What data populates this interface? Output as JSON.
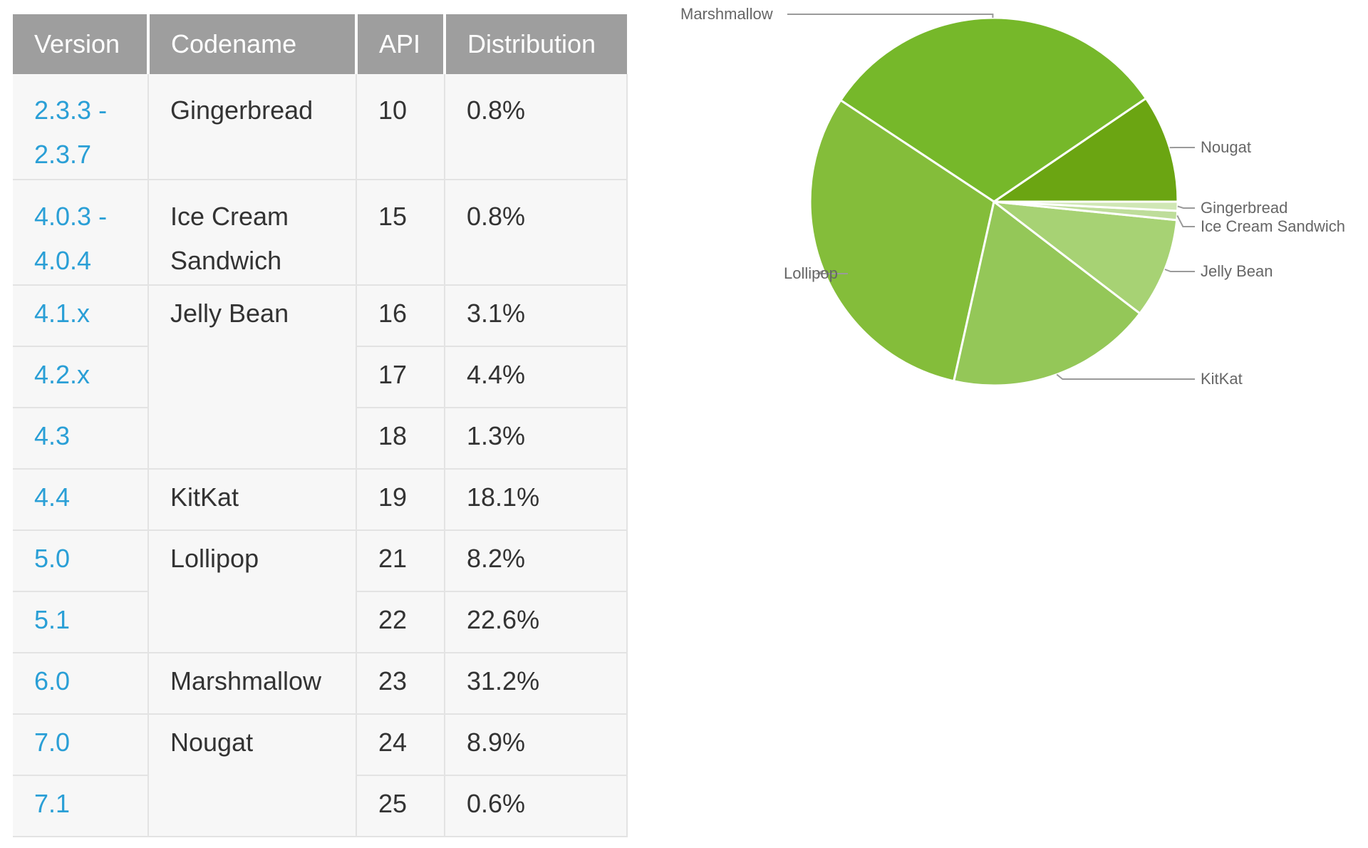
{
  "table": {
    "headers": [
      "Version",
      "Codename",
      "API",
      "Distribution"
    ],
    "rows": [
      {
        "version": "2.3.3 - 2.3.7",
        "codename": "Gingerbread",
        "api": "10",
        "distribution": "0.8%"
      },
      {
        "version": "4.0.3 - 4.0.4",
        "codename": "Ice Cream Sandwich",
        "api": "15",
        "distribution": "0.8%"
      },
      {
        "version": "4.1.x",
        "codename": "Jelly Bean",
        "api": "16",
        "distribution": "3.1%"
      },
      {
        "version": "4.2.x",
        "codename": "",
        "api": "17",
        "distribution": "4.4%"
      },
      {
        "version": "4.3",
        "codename": "",
        "api": "18",
        "distribution": "1.3%"
      },
      {
        "version": "4.4",
        "codename": "KitKat",
        "api": "19",
        "distribution": "18.1%"
      },
      {
        "version": "5.0",
        "codename": "Lollipop",
        "api": "21",
        "distribution": "8.2%"
      },
      {
        "version": "5.1",
        "codename": "",
        "api": "22",
        "distribution": "22.6%"
      },
      {
        "version": "6.0",
        "codename": "Marshmallow",
        "api": "23",
        "distribution": "31.2%"
      },
      {
        "version": "7.0",
        "codename": "Nougat",
        "api": "24",
        "distribution": "8.9%"
      },
      {
        "version": "7.1",
        "codename": "",
        "api": "25",
        "distribution": "0.6%"
      }
    ]
  },
  "chart_data": {
    "type": "pie",
    "categories": [
      "Nougat",
      "Marshmallow",
      "Lollipop",
      "KitKat",
      "Jelly Bean",
      "Ice Cream Sandwich",
      "Gingerbread"
    ],
    "values": [
      9.5,
      31.2,
      30.8,
      18.1,
      8.8,
      0.8,
      0.8
    ],
    "colors": [
      "#6ba512",
      "#76b82a",
      "#84bd3a",
      "#94c758",
      "#a7d274",
      "#bedd9a",
      "#d0e7b5"
    ],
    "labels": [
      "Nougat",
      "Marshmallow",
      "Lollipop",
      "KitKat",
      "Jelly Bean",
      "Ice Cream Sandwich",
      "Gingerbread"
    ],
    "legend": "labels beside slices",
    "title": "",
    "unit": "%"
  }
}
